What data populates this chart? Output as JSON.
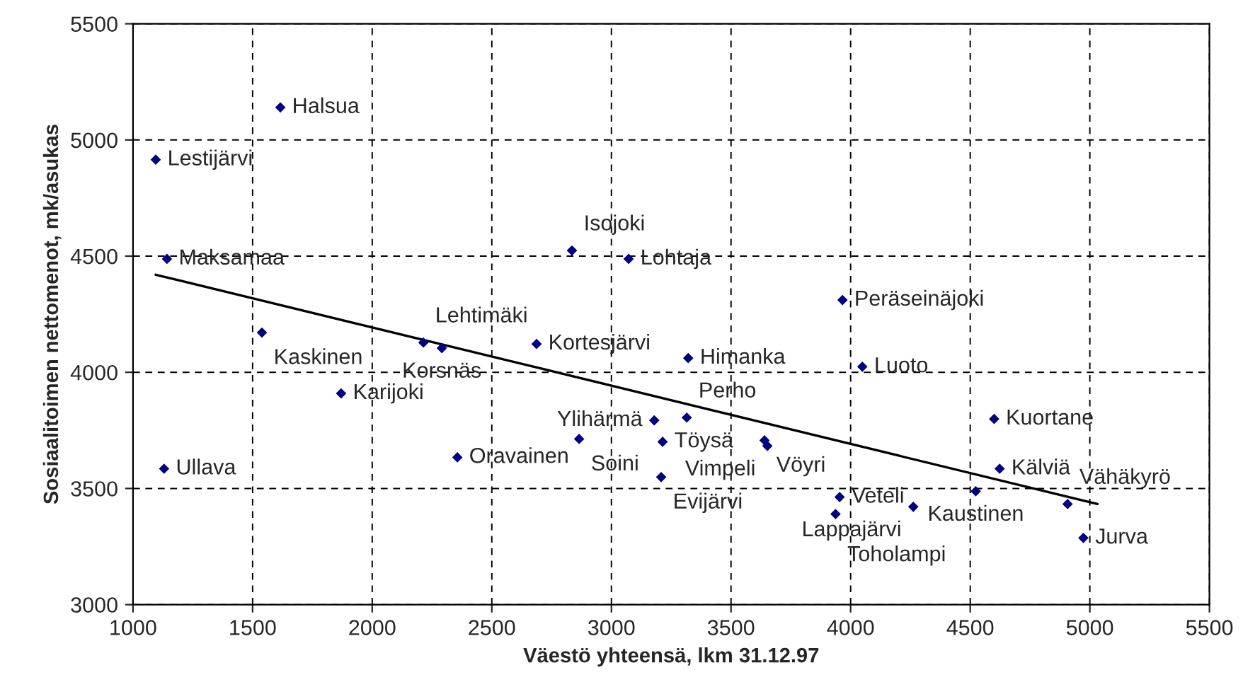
{
  "chart_data": {
    "type": "scatter",
    "xlabel": "Väestö yhteensä, lkm 31.12.97",
    "ylabel": "Sosiaalitoimen nettomenot, mk/asukas",
    "xlim": [
      1000,
      5500
    ],
    "xticks": [
      1000,
      1500,
      2000,
      2500,
      3000,
      3500,
      4000,
      4500,
      5000,
      5500
    ],
    "ylim": [
      3000,
      5500
    ],
    "yticks": [
      3000,
      3500,
      4000,
      4500,
      5000,
      5500
    ],
    "grid": true,
    "marker": "diamond",
    "series": [
      {
        "color": "#000080",
        "x": [
          1616,
          1095,
          1142,
          2835,
          3072,
          3966,
          1539,
          2214,
          2291,
          2687,
          3321,
          4049,
          1870,
          4600,
          3315,
          3179,
          2865,
          3214,
          3640,
          3652,
          2356,
          1130,
          4623,
          3208,
          4523,
          3954,
          4907,
          4262,
          3937,
          4973
        ],
        "values": [
          5140,
          4915,
          4488,
          4524,
          4488,
          4311,
          4171,
          4128,
          4104,
          4122,
          4061,
          4024,
          3909,
          3799,
          3805,
          3793,
          3713,
          3701,
          3707,
          3683,
          3634,
          3585,
          3585,
          3549,
          3488,
          3463,
          3433,
          3421,
          3390,
          3287
        ]
      },
      {
        "type": "line",
        "marker": "none",
        "color": "#000000",
        "x": [
          1095,
          5032
        ],
        "values": [
          4420,
          3433
        ]
      }
    ],
    "annotations": [
      {
        "text": "Halsua",
        "x": 1616,
        "y": 5140
      },
      {
        "text": "Lestijärvi",
        "x": 1095,
        "y": 4915
      },
      {
        "text": "Maksamaa",
        "x": 1142,
        "y": 4488
      },
      {
        "text": "Isojoki",
        "x": 2835,
        "y": 4524
      },
      {
        "text": "Lohtaja",
        "x": 3072,
        "y": 4488
      },
      {
        "text": "Peräseinäjoki",
        "x": 3966,
        "y": 4311
      },
      {
        "text": "Kaskinen",
        "x": 1539,
        "y": 4171
      },
      {
        "text": "Lehtimäki",
        "x": 2214,
        "y": 4128
      },
      {
        "text": "Korsnäs",
        "x": 2291,
        "y": 4104
      },
      {
        "text": "Kortesjärvi",
        "x": 2687,
        "y": 4122
      },
      {
        "text": "Himanka",
        "x": 3321,
        "y": 4061
      },
      {
        "text": "Luoto",
        "x": 4049,
        "y": 4024
      },
      {
        "text": "Karijoki",
        "x": 1870,
        "y": 3909
      },
      {
        "text": "Kuortane",
        "x": 4600,
        "y": 3799
      },
      {
        "text": "Perho",
        "x": 3315,
        "y": 3805
      },
      {
        "text": "Ylihärmä",
        "x": 3179,
        "y": 3793
      },
      {
        "text": "Soini",
        "x": 2865,
        "y": 3713
      },
      {
        "text": "Töysä",
        "x": 3214,
        "y": 3701
      },
      {
        "text": "Vöyri",
        "x": 3640,
        "y": 3707
      },
      {
        "text": "Vimpeli",
        "x": 3652,
        "y": 3683
      },
      {
        "text": "Oravainen",
        "x": 2356,
        "y": 3634
      },
      {
        "text": "Ullava",
        "x": 1130,
        "y": 3585
      },
      {
        "text": "Kälviä",
        "x": 4623,
        "y": 3585
      },
      {
        "text": "Evijärvi",
        "x": 3208,
        "y": 3549
      },
      {
        "text": "Kaustinen",
        "x": 4523,
        "y": 3488
      },
      {
        "text": "Veteli",
        "x": 3954,
        "y": 3463
      },
      {
        "text": "Vähäkyrö",
        "x": 4907,
        "y": 3433
      },
      {
        "text": "Lappajärvi",
        "x": 4262,
        "y": 3421
      },
      {
        "text": "Toholampi",
        "x": 3937,
        "y": 3390
      },
      {
        "text": "Jurva",
        "x": 4973,
        "y": 3287
      }
    ]
  }
}
